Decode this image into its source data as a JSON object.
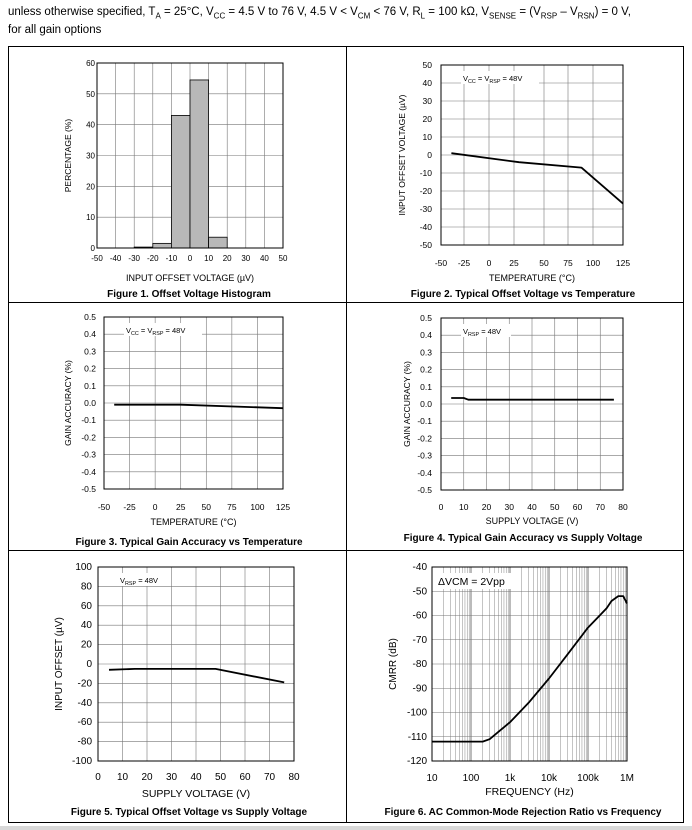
{
  "header": {
    "line1_parts": [
      "unless otherwise specified, T",
      "A",
      " = 25°C, V",
      "CC",
      " = 4.5 V to 76 V, 4.5 V < V",
      "CM",
      " < 76 V, R",
      "L",
      " = 100 kΩ, V",
      "SENSE",
      " = (V",
      "RSP",
      " – V",
      "RSN",
      ") = 0 V,"
    ],
    "line2": "for all gain options"
  },
  "chart_data": [
    {
      "id": "fig1",
      "type": "bar",
      "caption": "Figure 1. Offset Voltage Histogram",
      "xlabel": "INPUT OFFSET VOLTAGE (µV)",
      "ylabel": "PERCENTAGE (%)",
      "xlim": [
        -50,
        50
      ],
      "ylim": [
        0,
        60
      ],
      "xticks": [
        -50,
        -40,
        -30,
        -20,
        -10,
        0,
        10,
        20,
        30,
        40,
        50
      ],
      "xtick_labels": [
        "-50",
        "-40",
        "-30",
        "-20",
        "-10",
        "0",
        "10",
        "20",
        "30",
        "40",
        "50"
      ],
      "yticks": [
        0,
        10,
        20,
        30,
        40,
        50,
        60
      ],
      "ytick_labels": [
        "0",
        "10",
        "20",
        "30",
        "40",
        "50",
        "60"
      ],
      "bins": [
        {
          "from": -30,
          "to": -20,
          "value": 0.3
        },
        {
          "from": -20,
          "to": -10,
          "value": 1.5
        },
        {
          "from": -10,
          "to": 0,
          "value": 43
        },
        {
          "from": 0,
          "to": 10,
          "value": 54.5
        },
        {
          "from": 10,
          "to": 20,
          "value": 3.5
        }
      ]
    },
    {
      "id": "fig2",
      "type": "line",
      "caption": "Figure 2. Typical Offset Voltage vs Temperature",
      "xlabel": "TEMPERATURE (°C)",
      "ylabel": "INPUT OFFSET VOLTAGE (µV)",
      "annotation": "VCC = VRSP = 48V",
      "annotation_parts": [
        "V",
        "CC",
        " = V",
        "RSP",
        " = 48V"
      ],
      "xlim": [
        -50,
        125
      ],
      "ylim": [
        -50,
        50
      ],
      "xticks": [
        -50,
        -25,
        0,
        25,
        50,
        75,
        100,
        125
      ],
      "xtick_labels": [
        "-50",
        "-25",
        "0",
        "25",
        "50",
        "75",
        "100",
        "125"
      ],
      "yticks": [
        50,
        40,
        30,
        20,
        10,
        0,
        -10,
        -20,
        -30,
        -40,
        -50
      ],
      "ytick_labels": [
        "50",
        "40",
        "30",
        "20",
        "10",
        "0",
        "-10",
        "-20",
        "-30",
        "-40",
        "-50"
      ],
      "x": [
        -40,
        25,
        85,
        125
      ],
      "y": [
        1,
        -4,
        -7,
        -27
      ]
    },
    {
      "id": "fig3",
      "type": "line",
      "caption": "Figure 3. Typical Gain Accuracy vs Temperature",
      "xlabel": "TEMPERATURE (°C)",
      "ylabel": "GAIN ACCURACY (%)",
      "annotation": "VCC = VRSP = 48V",
      "annotation_parts": [
        "V",
        "CC",
        " = V",
        "RSP",
        " = 48V"
      ],
      "xlim": [
        -50,
        125
      ],
      "ylim": [
        -0.5,
        0.5
      ],
      "xticks": [
        -50,
        -25,
        0,
        25,
        50,
        75,
        100,
        125
      ],
      "xtick_labels": [
        "-50",
        "-25",
        "0",
        "25",
        "50",
        "75",
        "100",
        "125"
      ],
      "yticks": [
        0.5,
        0.4,
        0.3,
        0.2,
        0.1,
        0.0,
        -0.1,
        -0.2,
        -0.3,
        -0.4,
        -0.5
      ],
      "ytick_labels": [
        "0.5",
        "0.4",
        "0.3",
        "0.2",
        "0.1",
        "0.0",
        "-0.1",
        "-0.2",
        "-0.3",
        "-0.4",
        "-0.5"
      ],
      "x": [
        -40,
        25,
        125
      ],
      "y": [
        -0.01,
        -0.01,
        -0.03
      ]
    },
    {
      "id": "fig4",
      "type": "line",
      "caption": "Figure 4. Typical Gain Accuracy vs Supply Voltage",
      "xlabel": "SUPPLY VOLTAGE (V)",
      "ylabel": "GAIN ACCURACY (%)",
      "annotation": "VRSP = 48V",
      "annotation_parts": [
        "V",
        "RSP",
        " = 48V"
      ],
      "xlim": [
        0,
        80
      ],
      "ylim": [
        -0.5,
        0.5
      ],
      "xticks": [
        0,
        10,
        20,
        30,
        40,
        50,
        60,
        70,
        80
      ],
      "xtick_labels": [
        "0",
        "10",
        "20",
        "30",
        "40",
        "50",
        "60",
        "70",
        "80"
      ],
      "yticks": [
        0.5,
        0.4,
        0.3,
        0.2,
        0.1,
        0.0,
        -0.1,
        -0.2,
        -0.3,
        -0.4,
        -0.5
      ],
      "ytick_labels": [
        "0.5",
        "0.4",
        "0.3",
        "0.2",
        "0.1",
        "0.0",
        "-0.1",
        "-0.2",
        "-0.3",
        "-0.4",
        "-0.5"
      ],
      "x": [
        4.5,
        10,
        12,
        20,
        76
      ],
      "y": [
        0.035,
        0.035,
        0.025,
        0.025,
        0.025
      ]
    },
    {
      "id": "fig5",
      "type": "line",
      "caption": "Figure 5. Typical Offset Voltage vs Supply Voltage",
      "xlabel": "SUPPLY VOLTAGE (V)",
      "ylabel": "INPUT OFFSET (µV)",
      "annotation": "VRSP = 48V",
      "annotation_parts": [
        "V",
        "RSP",
        " = 48V"
      ],
      "xlim": [
        0,
        80
      ],
      "ylim": [
        -100,
        100
      ],
      "xticks": [
        0,
        10,
        20,
        30,
        40,
        50,
        60,
        70,
        80
      ],
      "xtick_labels": [
        "0",
        "10",
        "20",
        "30",
        "40",
        "50",
        "60",
        "70",
        "80"
      ],
      "yticks": [
        100,
        80,
        60,
        40,
        20,
        0,
        -20,
        -40,
        -60,
        -80,
        -100
      ],
      "ytick_labels": [
        "100",
        "80",
        "60",
        "40",
        "20",
        "0",
        "-20",
        "-40",
        "-60",
        "-80",
        "-100"
      ],
      "x": [
        4.5,
        15,
        48,
        76
      ],
      "y": [
        -6,
        -5,
        -5,
        -19
      ]
    },
    {
      "id": "fig6",
      "type": "line",
      "xscale": "log",
      "caption": "Figure 6. AC Common-Mode Rejection Ratio vs Frequency",
      "xlabel": "FREQUENCY (Hz)",
      "ylabel": "CMRR (dB)",
      "annotation": "ΔVCM = 2Vpp",
      "xlim": [
        10,
        1000000
      ],
      "ylim": [
        -120,
        -40
      ],
      "xticks": [
        10,
        100,
        1000,
        10000,
        100000,
        1000000
      ],
      "xtick_labels": [
        "10",
        "100",
        "1k",
        "10k",
        "100k",
        "1M"
      ],
      "yticks": [
        -40,
        -50,
        -60,
        -70,
        -80,
        -90,
        -100,
        -110,
        -120
      ],
      "ytick_labels": [
        "-40",
        "-50",
        "-60",
        "-70",
        "-80",
        "-90",
        "-100",
        "-110",
        "-120"
      ],
      "x": [
        10,
        100,
        200,
        300,
        500,
        1000,
        3000,
        10000,
        30000,
        100000,
        200000,
        300000,
        400000,
        600000,
        800000,
        1000000
      ],
      "y": [
        -112,
        -112,
        -112,
        -111,
        -108,
        -104,
        -96,
        -86,
        -76,
        -65,
        -60,
        -57,
        -54,
        -52,
        -52,
        -55
      ]
    }
  ]
}
